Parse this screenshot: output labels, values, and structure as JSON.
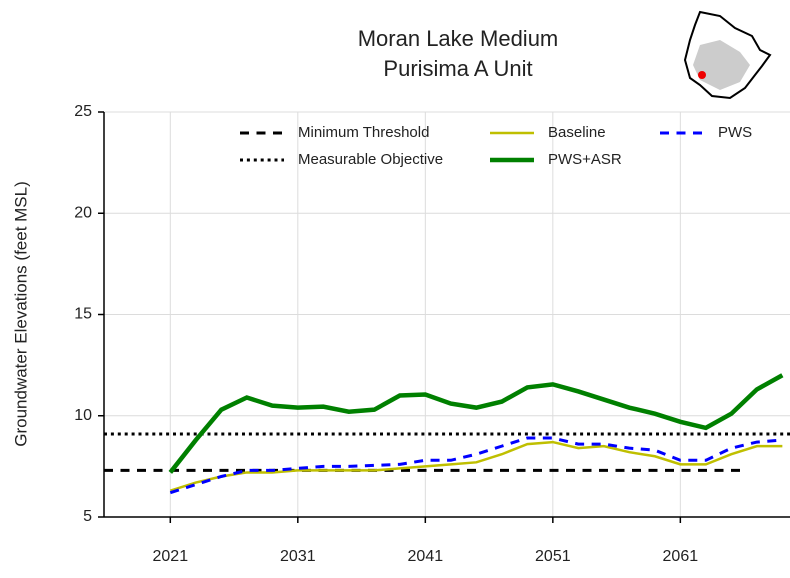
{
  "chart_data": {
    "type": "line",
    "title": [
      "Moran Lake Medium",
      "Purisima A Unit"
    ],
    "y_label": "Groundwater Elevations (feet MSL)",
    "xlim": [
      2015.8,
      2069.6
    ],
    "xticks": [
      2021,
      2031,
      2041,
      2051,
      2061
    ],
    "ylim": [
      5,
      25
    ],
    "yticks": [
      5,
      10,
      15,
      20,
      25
    ],
    "grid": true,
    "series": [
      {
        "name": "Minimum Threshold",
        "color": "#000000",
        "dash": "dashed",
        "width": 3,
        "x": [
          2015.8,
          2066.1
        ],
        "values": [
          7.3,
          7.3
        ]
      },
      {
        "name": "Measurable Objective",
        "color": "#000000",
        "dash": "dotted",
        "width": 3,
        "x": [
          2015.8,
          2069.6
        ],
        "values": [
          9.1,
          9.1
        ]
      },
      {
        "name": "Baseline",
        "color": "#bfbf00",
        "dash": "solid",
        "width": 2.5,
        "x": [
          2021,
          2023,
          2025,
          2027,
          2029,
          2031,
          2033,
          2035,
          2037,
          2039,
          2041,
          2043,
          2045,
          2047,
          2049,
          2051,
          2053,
          2055,
          2057,
          2059,
          2061,
          2063,
          2065,
          2067,
          2069
        ],
        "values": [
          6.3,
          6.7,
          7.0,
          7.2,
          7.2,
          7.3,
          7.3,
          7.3,
          7.3,
          7.4,
          7.5,
          7.6,
          7.7,
          8.1,
          8.6,
          8.7,
          8.4,
          8.5,
          8.2,
          8.0,
          7.6,
          7.6,
          8.1,
          8.5,
          8.5
        ]
      },
      {
        "name": "PWS+ASR",
        "color": "#008000",
        "dash": "solid",
        "width": 4.5,
        "x": [
          2021,
          2023,
          2025,
          2027,
          2029,
          2031,
          2033,
          2035,
          2037,
          2039,
          2041,
          2043,
          2045,
          2047,
          2049,
          2051,
          2053,
          2055,
          2057,
          2059,
          2061,
          2063,
          2065,
          2067,
          2069
        ],
        "values": [
          7.2,
          8.8,
          10.3,
          10.9,
          10.5,
          10.4,
          10.45,
          10.2,
          10.3,
          11.0,
          11.05,
          10.6,
          10.4,
          10.7,
          11.4,
          11.55,
          11.2,
          10.8,
          10.4,
          10.1,
          9.7,
          9.4,
          10.1,
          11.3,
          12.0
        ]
      },
      {
        "name": "PWS",
        "color": "#0000ff",
        "dash": "dashed",
        "width": 3,
        "x": [
          2021,
          2023,
          2025,
          2027,
          2029,
          2031,
          2033,
          2035,
          2037,
          2039,
          2041,
          2043,
          2045,
          2047,
          2049,
          2051,
          2053,
          2055,
          2057,
          2059,
          2061,
          2063,
          2065,
          2067,
          2069
        ],
        "values": [
          6.2,
          6.6,
          7.0,
          7.3,
          7.3,
          7.4,
          7.5,
          7.5,
          7.55,
          7.6,
          7.8,
          7.8,
          8.1,
          8.5,
          8.9,
          8.9,
          8.6,
          8.6,
          8.4,
          8.3,
          7.8,
          7.8,
          8.4,
          8.7,
          8.8
        ]
      }
    ]
  }
}
